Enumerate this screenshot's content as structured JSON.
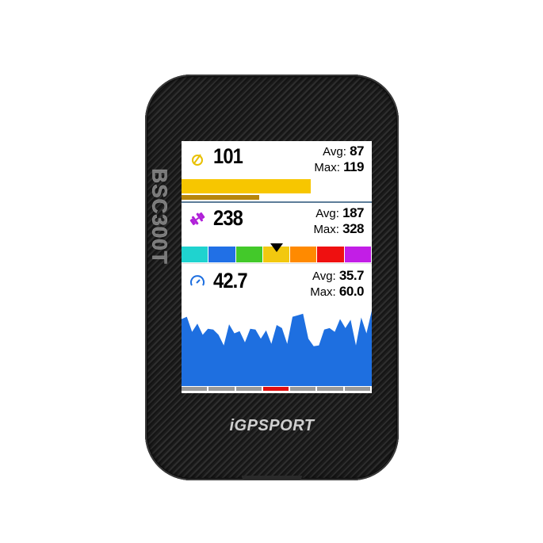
{
  "device": {
    "model": "BSC300T",
    "brand": "iGPSPORT"
  },
  "cadence": {
    "icon": "cadence-icon",
    "value": "101",
    "avg_label": "Avg:",
    "avg": "87",
    "max_label": "Max:",
    "max": "119",
    "current_bar_fraction": 0.68,
    "average_bar_fraction": 0.41,
    "color": "#f7c600",
    "avg_color": "#b8860b"
  },
  "power": {
    "icon": "dumbbell-icon",
    "value": "238",
    "avg_label": "Avg:",
    "avg": "187",
    "max_label": "Max:",
    "max": "328",
    "active_zone": 4,
    "zone_colors": [
      "#1fd3cf",
      "#2170e6",
      "#43c92a",
      "#f2c80f",
      "#ff8a00",
      "#ef1010",
      "#c21ee6"
    ]
  },
  "speed": {
    "icon": "speedometer-icon",
    "value": "42.7",
    "avg_label": "Avg:",
    "avg": "35.7",
    "max_label": "Max:",
    "max": "60.0",
    "color": "#1e6fe0",
    "history_percent": [
      89,
      92,
      72,
      83,
      68,
      76,
      75,
      68,
      54,
      82,
      70,
      73,
      58,
      76,
      75,
      63,
      74,
      56,
      81,
      77,
      56,
      92,
      94,
      96,
      63,
      53,
      54,
      75,
      77,
      72,
      89,
      77,
      88,
      54,
      91,
      70,
      100
    ],
    "strip_active": 4,
    "strip_color": "#9a9a9a",
    "strip_active_color": "#e01010"
  }
}
